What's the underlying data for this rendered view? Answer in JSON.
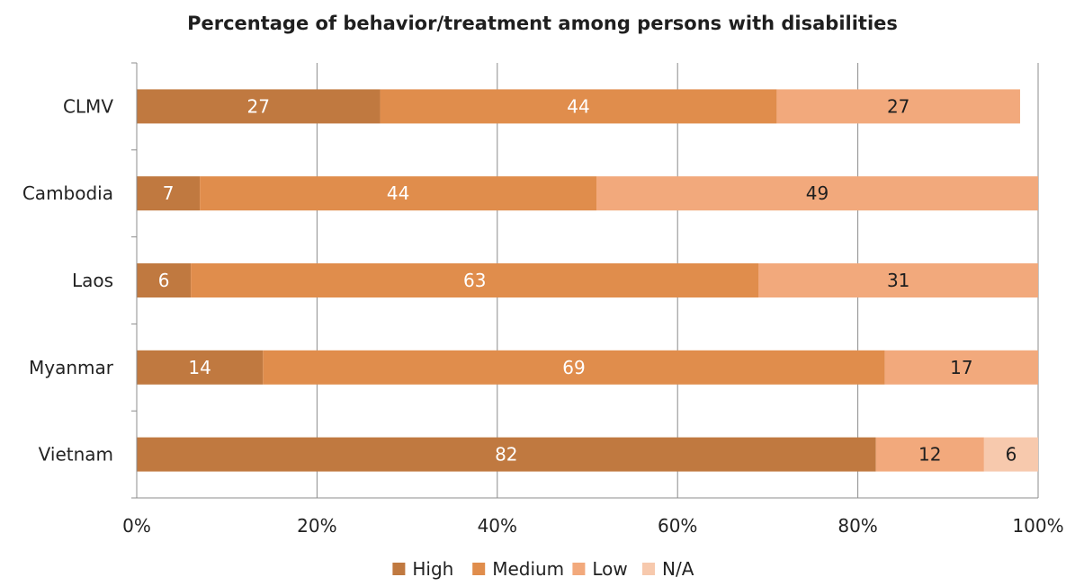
{
  "chart_data": {
    "type": "bar",
    "orientation": "horizontal",
    "stacked": true,
    "title": "Percentage of behavior/treatment among persons with disabilities",
    "xlabel": "",
    "ylabel": "",
    "xlim": [
      0,
      100
    ],
    "x_ticks": [
      "0%",
      "20%",
      "40%",
      "60%",
      "80%",
      "100%"
    ],
    "categories": [
      "CLMV",
      "Cambodia",
      "Laos",
      "Myanmar",
      "Vietnam"
    ],
    "series": [
      {
        "name": "High",
        "color": "#c07940",
        "label_color": "#ffffff",
        "values": [
          27,
          7,
          6,
          14,
          82
        ]
      },
      {
        "name": "Medium",
        "color": "#e08d4c",
        "label_color": "#ffffff",
        "values": [
          44,
          44,
          63,
          69,
          null
        ]
      },
      {
        "name": "Low",
        "color": "#f2a97c",
        "label_color": "#1f1f1f",
        "values": [
          27,
          49,
          31,
          17,
          12
        ]
      },
      {
        "name": "N/A",
        "color": "#f7c9ad",
        "label_color": "#1f1f1f",
        "values": [
          null,
          null,
          null,
          null,
          6
        ]
      }
    ],
    "grid": true,
    "legend_position": "bottom"
  }
}
